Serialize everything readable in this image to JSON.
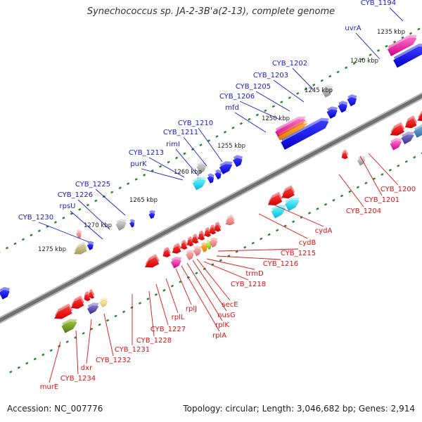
{
  "title": "Synechococcus sp. JA-2-3B'a(2-13), complete genome",
  "footer": {
    "accession": "Accession: NC_007776",
    "topology": "Topology: circular; Length: 3,046,682 bp; Genes: 2,914"
  },
  "colors": {
    "upper_labels": "#1a1acc",
    "lower_labels": "#dd1111",
    "ruler_ticks": "#22882b",
    "backbone": "#808080"
  },
  "kbp_ticks": [
    {
      "label": "1235 kbp"
    },
    {
      "label": "1240 kbp"
    },
    {
      "label": "1245 kbp"
    },
    {
      "label": "1250 kbp"
    },
    {
      "label": "1255 kbp"
    },
    {
      "label": "1260 kbp"
    },
    {
      "label": "1265 kbp"
    },
    {
      "label": "1270 kbp"
    },
    {
      "label": "1275 kbp"
    }
  ],
  "upper_genes": [
    {
      "label": "CYB_1194"
    },
    {
      "label": "uvrA"
    },
    {
      "label": "CYB_1202"
    },
    {
      "label": "CYB_1203"
    },
    {
      "label": "CYB_1205"
    },
    {
      "label": "CYB_1206"
    },
    {
      "label": "mfd"
    },
    {
      "label": "CYB_1210"
    },
    {
      "label": "CYB_1211"
    },
    {
      "label": "rimI"
    },
    {
      "label": "CYB_1213"
    },
    {
      "label": "purK"
    },
    {
      "label": "CYB_1225"
    },
    {
      "label": "CYB_1226"
    },
    {
      "label": "rpsU"
    },
    {
      "label": "CYB_1230"
    }
  ],
  "lower_genes": [
    {
      "label": "CYB_1200"
    },
    {
      "label": "CYB_1201"
    },
    {
      "label": "CYB_1204"
    },
    {
      "label": "cydA"
    },
    {
      "label": "cydB"
    },
    {
      "label": "CYB_1215"
    },
    {
      "label": "CYB_1216"
    },
    {
      "label": "trmD"
    },
    {
      "label": "CYB_1218"
    },
    {
      "label": "secE"
    },
    {
      "label": "nusG"
    },
    {
      "label": "rplK"
    },
    {
      "label": "rplA"
    },
    {
      "label": "rplJ"
    },
    {
      "label": "rplL"
    },
    {
      "label": "CYB_1227"
    },
    {
      "label": "CYB_1228"
    },
    {
      "label": "CYB_1231"
    },
    {
      "label": "CYB_1232"
    },
    {
      "label": "dxr"
    },
    {
      "label": "CYB_1234"
    },
    {
      "label": "murE"
    }
  ]
}
